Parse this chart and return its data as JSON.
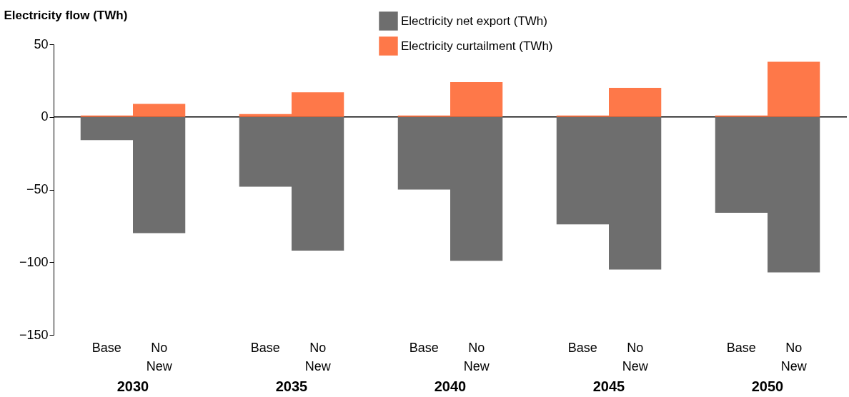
{
  "chart_data": {
    "type": "bar",
    "ylabel": "Electricity flow (TWh)",
    "categories": [
      "Base",
      "No New",
      "Base",
      "No New",
      "Base",
      "No New",
      "Base",
      "No New",
      "Base",
      "No New"
    ],
    "annotations": [
      "2030",
      "2035",
      "2040",
      "2045",
      "2050"
    ],
    "stacked": true,
    "series": [
      {
        "name": "Electricity net export (TWh)",
        "color": "#6e6e6e",
        "values": [
          -16,
          -80,
          -48,
          -92,
          -50,
          -99,
          -74,
          -105,
          -66,
          -107
        ]
      },
      {
        "name": "Electricity curtailment (TWh)",
        "color": "#fe7849",
        "values": [
          1,
          9,
          2,
          17,
          1,
          24,
          1,
          20,
          1,
          38
        ]
      }
    ],
    "ylim": [
      -150,
      50
    ],
    "yticks": [
      -150,
      -100,
      -50,
      0,
      50
    ],
    "ref_lines": [
      {
        "axis": "y",
        "value": 0,
        "color": "#000000"
      }
    ],
    "legend": "top",
    "grid": false
  }
}
